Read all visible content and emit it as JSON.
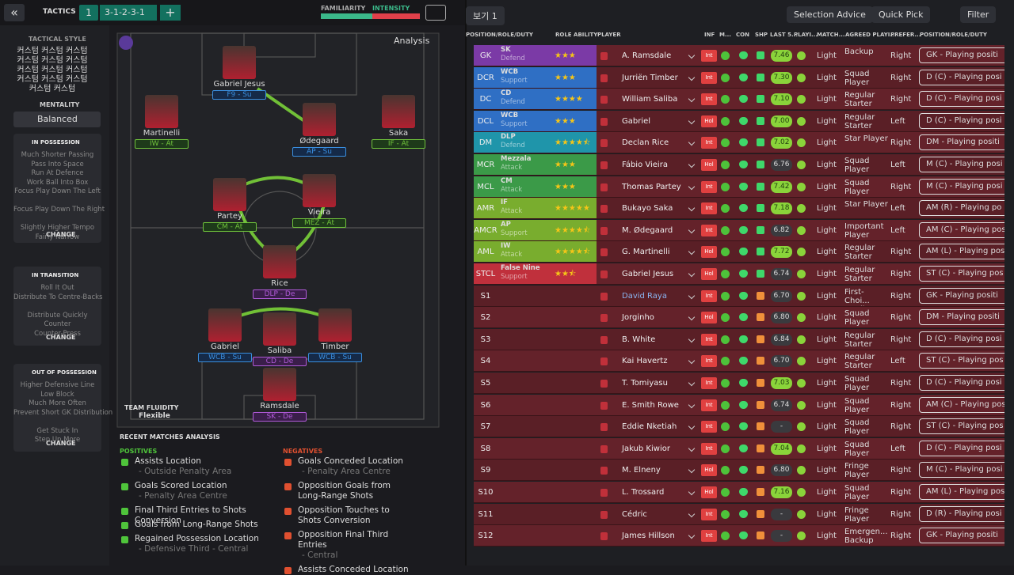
{
  "topbar": {
    "title": "TACTICS",
    "tactic_slot": "1",
    "formation": "3-1-2-3-1",
    "familiarity": "FAMILIARITY",
    "intensity": "INTENSITY"
  },
  "sidebar": {
    "tactical_style_label": "TACTICAL STYLE",
    "tactical_style": [
      "커스텀 커스텀 커스텀",
      "커스텀 커스텀 커스텀",
      "커스텀 커스텀 커스텀",
      "커스텀 커스텀 커스텀",
      "커스텀 커스텀"
    ],
    "mentality_label": "MENTALITY",
    "mentality": "Balanced",
    "sections": [
      {
        "title": "IN POSSESSION",
        "items": [
          "Much Shorter Passing",
          "Pass Into Space",
          "Run At Defence",
          "Work Ball Into Box",
          "Focus Play Down The Left",
          "Focus Play Down The Right",
          "Slightly Higher Tempo",
          "Fairly Narrow"
        ],
        "button": "CHANGE"
      },
      {
        "title": "IN TRANSITION",
        "items": [
          "Roll It Out",
          "Distribute To Centre-Backs",
          "Distribute Quickly",
          "Counter",
          "Counter-Press"
        ],
        "button": "CHANGE"
      },
      {
        "title": "OUT OF POSSESSION",
        "items": [
          "Higher Defensive Line",
          "Low Block",
          "Much More Often",
          "Prevent Short GK Distribution",
          "Get Stuck In",
          "Step Up More"
        ],
        "button": "CHANGE"
      }
    ]
  },
  "pitch": {
    "analysis": "Analysis",
    "fluidity_label": "TEAM FLUIDITY",
    "fluidity": "Flexible",
    "players": [
      {
        "name": "Gabriel Jesus",
        "role": "F9 - Su"
      },
      {
        "name": "Martinelli",
        "role": "IW - At"
      },
      {
        "name": "Ødegaard",
        "role": "AP - Su"
      },
      {
        "name": "Saka",
        "role": "IF - At"
      },
      {
        "name": "Partey",
        "role": "CM - At"
      },
      {
        "name": "Vieira",
        "role": "MEZ - At"
      },
      {
        "name": "Rice",
        "role": "DLP - De"
      },
      {
        "name": "Gabriel",
        "role": "WCB - Su"
      },
      {
        "name": "Saliba",
        "role": "CD - De"
      },
      {
        "name": "Timber",
        "role": "WCB - Su"
      },
      {
        "name": "Ramsdale",
        "role": "SK - De"
      }
    ]
  },
  "recent": {
    "title": "RECENT MATCHES ANALYSIS",
    "positives_label": "POSITIVES",
    "positives": [
      {
        "text": "Assists Location",
        "detail": "- Outside Penalty Area"
      },
      {
        "text": "Goals Scored Location",
        "detail": "- Penalty Area Centre"
      },
      {
        "text": "Final Third Entries to Shots Conversion"
      },
      {
        "text": "Goals from Long-Range Shots"
      },
      {
        "text": "Regained Possession Location",
        "detail": "- Defensive Third - Central"
      }
    ],
    "negatives_label": "NEGATIVES",
    "negatives": [
      {
        "text": "Goals Conceded Location",
        "detail": "- Penalty Area Centre"
      },
      {
        "text": "Opposition Goals from Long-Range Shots"
      },
      {
        "text": "Opposition Touches to Shots Conversion"
      },
      {
        "text": "Opposition Final Third Entries",
        "detail": "- Central"
      },
      {
        "text": "Assists Conceded Location"
      }
    ]
  },
  "squad": {
    "view": "보기 1",
    "buttons": [
      "Selection Advice",
      "Quick Pick",
      "Filter"
    ],
    "headers": [
      "POSITION/ROLE/DUTY",
      "ROLE ABILITY",
      "PLAYER",
      "INF",
      "M...",
      "CON",
      "SHP",
      "LAST 5...",
      "PLAYI...",
      "MATCH...",
      "AGREED PLAYI...",
      "PREFER...",
      "POSITION/ROLE/DUTY"
    ],
    "rows": [
      {
        "pos": "GK",
        "role": "SK",
        "duty": "Defend",
        "color": "#7b3aa6",
        "role_ability": 3,
        "player": "A. Ramsdale",
        "inf": "Int",
        "rating": "7.46",
        "load": "Light",
        "agreed": "Backup",
        "foot": "Right",
        "position": "GK - Playing positi"
      },
      {
        "pos": "DCR",
        "role": "WCB",
        "duty": "Support",
        "color": "#2f6fc4",
        "role_ability": 3,
        "player": "Jurriën Timber",
        "inf": "Int",
        "rating": "7.30",
        "load": "Light",
        "agreed": "Squad Player",
        "foot": "Right",
        "position": "D (C) - Playing posi"
      },
      {
        "pos": "DC",
        "role": "CD",
        "duty": "Defend",
        "color": "#2f6fc4",
        "role_ability": 4,
        "player": "William Saliba",
        "inf": "Int",
        "rating": "7.10",
        "load": "Light",
        "agreed": "Regular Starter",
        "foot": "Right",
        "position": "D (C) - Playing posi"
      },
      {
        "pos": "DCL",
        "role": "WCB",
        "duty": "Support",
        "color": "#2f6fc4",
        "role_ability": 3,
        "player": "Gabriel",
        "inf": "Hol",
        "rating": "7.00",
        "load": "Light",
        "agreed": "Regular Starter",
        "foot": "Left",
        "position": "D (C) - Playing posi"
      },
      {
        "pos": "DM",
        "role": "DLP",
        "duty": "Defend",
        "color": "#1f95aa",
        "role_ability": 4.5,
        "player": "Declan Rice",
        "inf": "Int",
        "rating": "7.02",
        "load": "Light",
        "agreed": "Star Player",
        "foot": "Right",
        "position": "DM - Playing positi"
      },
      {
        "pos": "MCR",
        "role": "Mezzala",
        "duty": "Attack",
        "color": "#3b9a48",
        "role_ability": 3,
        "player": "Fábio Vieira",
        "inf": "Hol",
        "rating": "6.76",
        "load": "Light",
        "agreed": "Squad Player",
        "foot": "Left",
        "position": "M (C) - Playing posi"
      },
      {
        "pos": "MCL",
        "role": "CM",
        "duty": "Attack",
        "color": "#3b9a48",
        "role_ability": 3,
        "player": "Thomas Partey",
        "inf": "Int",
        "rating": "7.42",
        "load": "Light",
        "agreed": "Squad Player",
        "foot": "Right",
        "position": "M (C) - Playing posi"
      },
      {
        "pos": "AMR",
        "role": "IF",
        "duty": "Attack",
        "color": "#79ad2e",
        "role_ability": 5,
        "player": "Bukayo Saka",
        "inf": "Int",
        "rating": "7.18",
        "load": "Light",
        "agreed": "Star Player",
        "foot": "Left",
        "position": "AM (R) - Playing po"
      },
      {
        "pos": "AMCR",
        "role": "AP",
        "duty": "Support",
        "color": "#79ad2e",
        "role_ability": 4.5,
        "player": "M. Ødegaard",
        "inf": "Int",
        "rating": "6.82",
        "load": "Light",
        "agreed": "Important Player",
        "foot": "Left",
        "position": "AM (C) - Playing pos"
      },
      {
        "pos": "AML",
        "role": "IW",
        "duty": "Attack",
        "color": "#79ad2e",
        "role_ability": 4.5,
        "player": "G. Martinelli",
        "inf": "Hol",
        "rating": "7.72",
        "load": "Light",
        "agreed": "Regular Starter",
        "foot": "Right",
        "position": "AM (L) - Playing pos"
      },
      {
        "pos": "STCL",
        "role": "False Nine",
        "duty": "Support",
        "color": "#c0303c",
        "role_ability": 2.5,
        "player": "Gabriel Jesus",
        "inf": "Hol",
        "rating": "6.74",
        "load": "Light",
        "agreed": "Regular Starter",
        "foot": "Right",
        "position": "ST (C) - Playing pos"
      },
      {
        "pos": "S1",
        "player": "David Raya",
        "inf": "Int",
        "rating": "6.70",
        "load": "Light",
        "agreed": "First-Choi... Goalkee...",
        "foot": "Right",
        "position": "GK - Playing positi"
      },
      {
        "pos": "S2",
        "player": "Jorginho",
        "inf": "Hol",
        "rating": "6.80",
        "load": "Light",
        "agreed": "Squad Player",
        "foot": "Right",
        "position": "DM - Playing positi"
      },
      {
        "pos": "S3",
        "player": "B. White",
        "inf": "Int",
        "rating": "6.84",
        "load": "Light",
        "agreed": "Regular Starter",
        "foot": "Right",
        "position": "D (C) - Playing posi"
      },
      {
        "pos": "S4",
        "player": "Kai Havertz",
        "inf": "Int",
        "rating": "6.70",
        "load": "Light",
        "agreed": "Regular Starter",
        "foot": "Left",
        "position": "ST (C) - Playing pos"
      },
      {
        "pos": "S5",
        "player": "T. Tomiyasu",
        "inf": "Int",
        "rating": "7.03",
        "load": "Light",
        "agreed": "Squad Player",
        "foot": "Right",
        "position": "D (C) - Playing posi"
      },
      {
        "pos": "S6",
        "player": "E. Smith Rowe",
        "inf": "Int",
        "rating": "6.74",
        "load": "Light",
        "agreed": "Squad Player",
        "foot": "Right",
        "position": "AM (C) - Playing pos"
      },
      {
        "pos": "S7",
        "player": "Eddie Nketiah",
        "inf": "Int",
        "rating": "-",
        "load": "Light",
        "agreed": "Squad Player",
        "foot": "Right",
        "position": "ST (C) - Playing pos"
      },
      {
        "pos": "S8",
        "player": "Jakub Kiwior",
        "inf": "Int",
        "rating": "7.04",
        "load": "Light",
        "agreed": "Squad Player",
        "foot": "Left",
        "position": "D (C) - Playing posi"
      },
      {
        "pos": "S9",
        "player": "M. Elneny",
        "inf": "Hol",
        "rating": "6.80",
        "load": "Light",
        "agreed": "Fringe Player",
        "foot": "Right",
        "position": "M (C) - Playing posi"
      },
      {
        "pos": "S10",
        "player": "L. Trossard",
        "inf": "Hol",
        "rating": "7.16",
        "load": "Light",
        "agreed": "Squad Player",
        "foot": "Right",
        "position": "AM (L) - Playing pos"
      },
      {
        "pos": "S11",
        "player": "Cédric",
        "inf": "Int",
        "rating": "-",
        "load": "Light",
        "agreed": "Fringe Player",
        "foot": "Right",
        "position": "D (R) - Playing posi"
      },
      {
        "pos": "S12",
        "player": "James Hillson",
        "inf": "Int",
        "rating": "-",
        "load": "Light",
        "agreed": "Emergen... Backup",
        "foot": "Right",
        "position": "GK - Playing positi"
      }
    ]
  }
}
